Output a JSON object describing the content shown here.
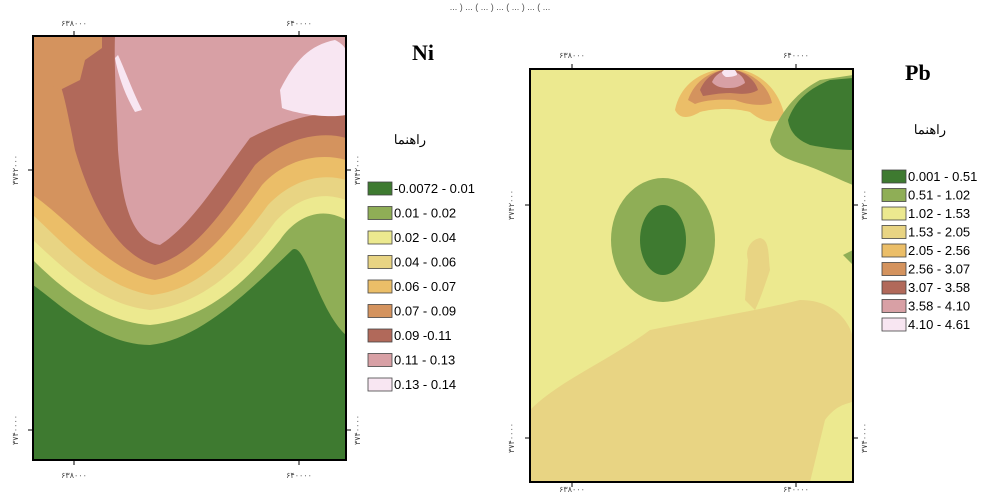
{
  "caption_fragment": "... ) ... ( ... ) ... ( ... ) ... ( ...",
  "colors": {
    "dark_green": "#3e7a30",
    "light_green": "#8fae56",
    "pale_yellow": "#ece98f",
    "light_tan": "#e8d483",
    "tan_orange": "#ebbe68",
    "orange_brown": "#d4935e",
    "red_brown": "#b1695a",
    "pink": "#d8a0a5",
    "pale_pink": "#f8e6f2"
  },
  "ni_map": {
    "title": "Ni",
    "legend_title": "راهنما",
    "ticks": {
      "top_left": "۶۳۸۰۰۰",
      "top_right": "۶۴۰۰۰۰",
      "bottom_left": "۶۳۸۰۰۰",
      "bottom_right": "۶۴۰۰۰۰",
      "left_upper": "۳۷۴۲۰۰۰",
      "left_lower": "۳۷۴۰۰۰۰",
      "right_upper": "۳۷۴۲۰۰۰",
      "right_lower": "۳۷۴۰۰۰۰"
    },
    "legend": [
      {
        "label": "-0.0072 - 0.01",
        "color": "#3e7a30"
      },
      {
        "label": "0.01 - 0.02",
        "color": "#8fae56"
      },
      {
        "label": "0.02 - 0.04",
        "color": "#ece98f"
      },
      {
        "label": "0.04 - 0.06",
        "color": "#e8d483"
      },
      {
        "label": "0.06 - 0.07",
        "color": "#ebbe68"
      },
      {
        "label": "0.07 - 0.09",
        "color": "#d4935e"
      },
      {
        "label": "0.09 -0.11",
        "color": "#b1695a"
      },
      {
        "label": "0.11 - 0.13",
        "color": "#d8a0a5"
      },
      {
        "label": "0.13 - 0.14",
        "color": "#f8e6f2"
      }
    ]
  },
  "pb_map": {
    "title": "Pb",
    "legend_title": "راهنما",
    "ticks": {
      "top_left": "۶۳۸۰۰۰",
      "top_right": "۶۴۰۰۰۰",
      "bottom_left": "۶۳۸۰۰۰",
      "bottom_right": "۶۴۰۰۰۰",
      "left_upper": "۳۷۴۲۰۰۰",
      "left_lower": "۳۷۴۰۰۰۰",
      "right_upper": "۳۷۴۲۰۰۰",
      "right_lower": "۳۷۴۰۰۰۰"
    },
    "legend": [
      {
        "label": "0.001 - 0.51",
        "color": "#3e7a30"
      },
      {
        "label": "0.51 - 1.02",
        "color": "#8fae56"
      },
      {
        "label": "1.02 - 1.53",
        "color": "#ece98f"
      },
      {
        "label": "1.53 - 2.05",
        "color": "#e8d483"
      },
      {
        "label": "2.05 - 2.56",
        "color": "#ebbe68"
      },
      {
        "label": "2.56 - 3.07",
        "color": "#d4935e"
      },
      {
        "label": "3.07 - 3.58",
        "color": "#b1695a"
      },
      {
        "label": "3.58 - 4.10",
        "color": "#d8a0a5"
      },
      {
        "label": "4.10 - 4.61",
        "color": "#f8e6f2"
      }
    ]
  }
}
